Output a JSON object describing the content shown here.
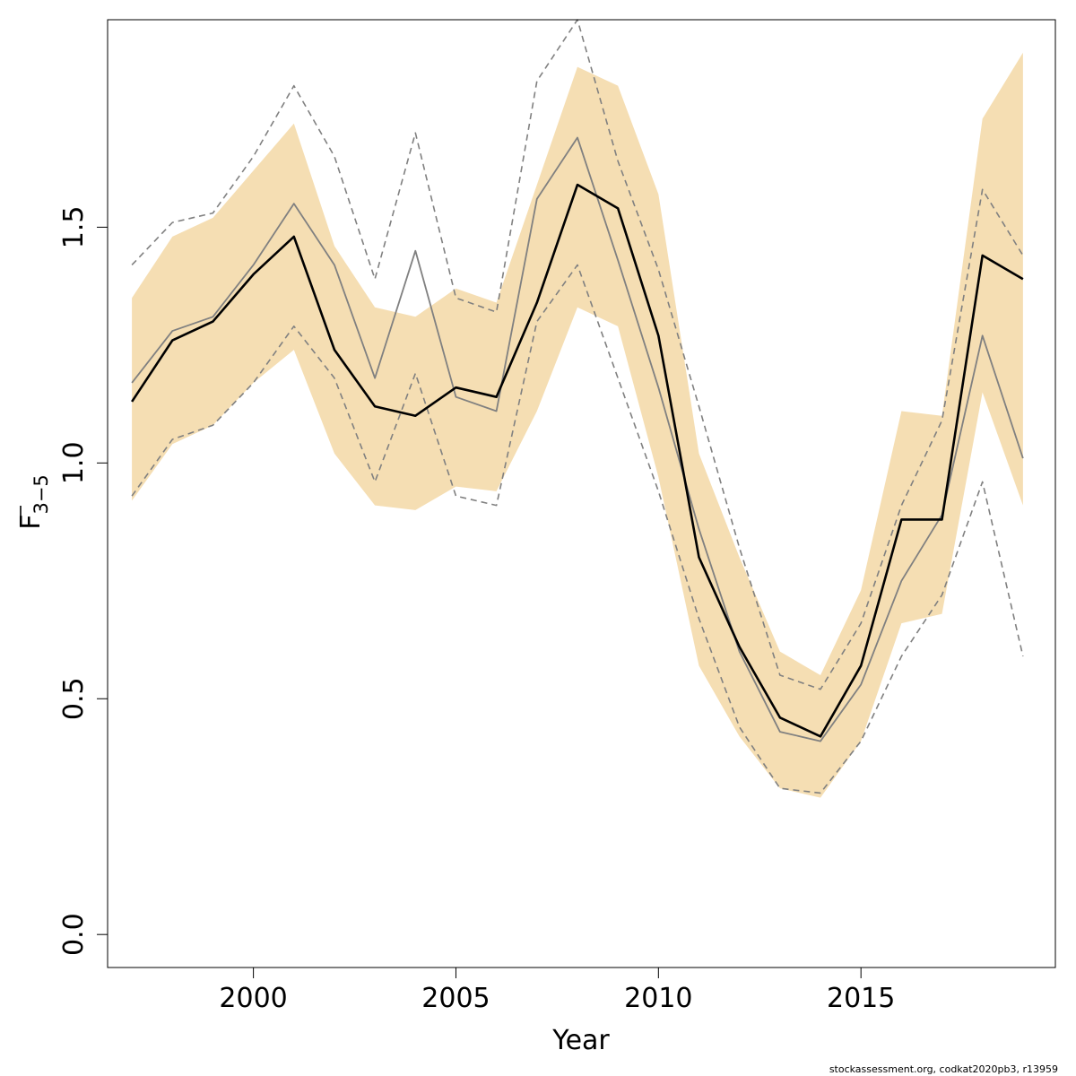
{
  "chart_data": {
    "type": "line",
    "xlabel": "Year",
    "ylabel_main": "F",
    "ylabel_sub": "3−5",
    "xlim": [
      1996.4,
      2019.8
    ],
    "ylim": [
      -0.07,
      1.94
    ],
    "x_ticks": [
      2000,
      2005,
      2010,
      2015
    ],
    "x_tick_labels": [
      "2000",
      "2005",
      "2010",
      "2015"
    ],
    "y_ticks": [
      0.0,
      0.5,
      1.0,
      1.5
    ],
    "y_tick_labels": [
      "0.0",
      "0.5",
      "1.0",
      "1.5"
    ],
    "credit": "stockassessment.org, codkat2020pb3, r13959",
    "colors": {
      "band": "#f5deb3",
      "main": "#000000",
      "secondary": "#808080",
      "dashed": "#808080"
    },
    "x": [
      1997,
      1998,
      1999,
      2000,
      2001,
      2002,
      2003,
      2004,
      2005,
      2006,
      2007,
      2008,
      2009,
      2010,
      2011,
      2012,
      2013,
      2014,
      2015,
      2016,
      2017,
      2018,
      2019
    ],
    "series": [
      {
        "role": "band_lower",
        "values": [
          0.92,
          1.04,
          1.08,
          1.17,
          1.24,
          1.02,
          0.91,
          0.9,
          0.95,
          0.94,
          1.11,
          1.33,
          1.29,
          0.97,
          0.57,
          0.42,
          0.31,
          0.29,
          0.41,
          0.66,
          0.68,
          1.15,
          0.91
        ]
      },
      {
        "role": "band_upper",
        "values": [
          1.35,
          1.48,
          1.52,
          1.62,
          1.72,
          1.46,
          1.33,
          1.31,
          1.37,
          1.34,
          1.59,
          1.84,
          1.8,
          1.57,
          1.02,
          0.8,
          0.6,
          0.55,
          0.73,
          1.11,
          1.1,
          1.73,
          1.87
        ]
      },
      {
        "role": "main",
        "values": [
          1.13,
          1.26,
          1.3,
          1.4,
          1.48,
          1.24,
          1.12,
          1.1,
          1.16,
          1.14,
          1.34,
          1.59,
          1.54,
          1.27,
          0.8,
          0.61,
          0.46,
          0.42,
          0.57,
          0.88,
          0.88,
          1.44,
          1.39
        ]
      },
      {
        "role": "secondary",
        "values": [
          1.17,
          1.28,
          1.31,
          1.42,
          1.55,
          1.42,
          1.18,
          1.45,
          1.14,
          1.11,
          1.56,
          1.69,
          1.43,
          1.16,
          0.86,
          0.6,
          0.43,
          0.41,
          0.53,
          0.75,
          0.89,
          1.27,
          1.01
        ]
      },
      {
        "role": "dashed_upper",
        "values": [
          1.42,
          1.51,
          1.53,
          1.65,
          1.8,
          1.65,
          1.39,
          1.7,
          1.35,
          1.32,
          1.81,
          1.94,
          1.64,
          1.41,
          1.12,
          0.82,
          0.55,
          0.52,
          0.66,
          0.91,
          1.09,
          1.58,
          1.44
        ]
      },
      {
        "role": "dashed_lower",
        "values": [
          0.93,
          1.05,
          1.08,
          1.17,
          1.29,
          1.18,
          0.96,
          1.19,
          0.93,
          0.91,
          1.3,
          1.42,
          1.18,
          0.94,
          0.67,
          0.44,
          0.31,
          0.3,
          0.41,
          0.59,
          0.72,
          0.96,
          0.59
        ]
      }
    ]
  }
}
